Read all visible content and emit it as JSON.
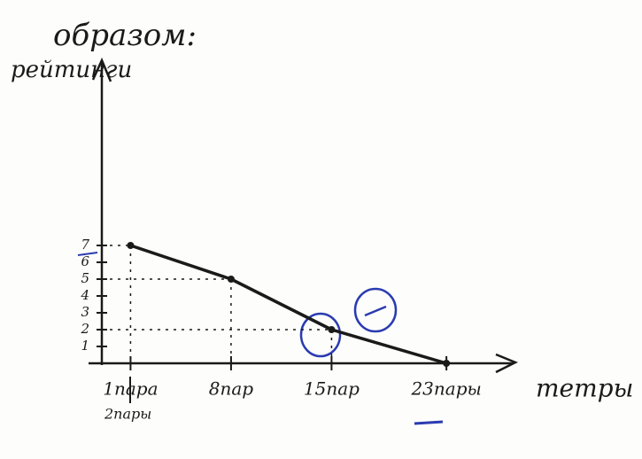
{
  "chart_data": {
    "type": "line",
    "title": "образом:",
    "y_label": "рейтинги",
    "x_label": "тетры",
    "annotation": "2пары",
    "x": [
      1,
      8,
      15,
      23
    ],
    "values": [
      7,
      5,
      2,
      0
    ],
    "color": "#1a1a1a",
    "xlim": [
      -1,
      27
    ],
    "ylim": [
      0,
      18
    ],
    "xticks": [
      {
        "value": 1,
        "label": "1пара"
      },
      {
        "value": 8,
        "label": "8пар"
      },
      {
        "value": 15,
        "label": "15пар"
      },
      {
        "value": 23,
        "label": "23пары"
      }
    ],
    "yticks": [
      1,
      2,
      3,
      4,
      5,
      6,
      7
    ]
  }
}
